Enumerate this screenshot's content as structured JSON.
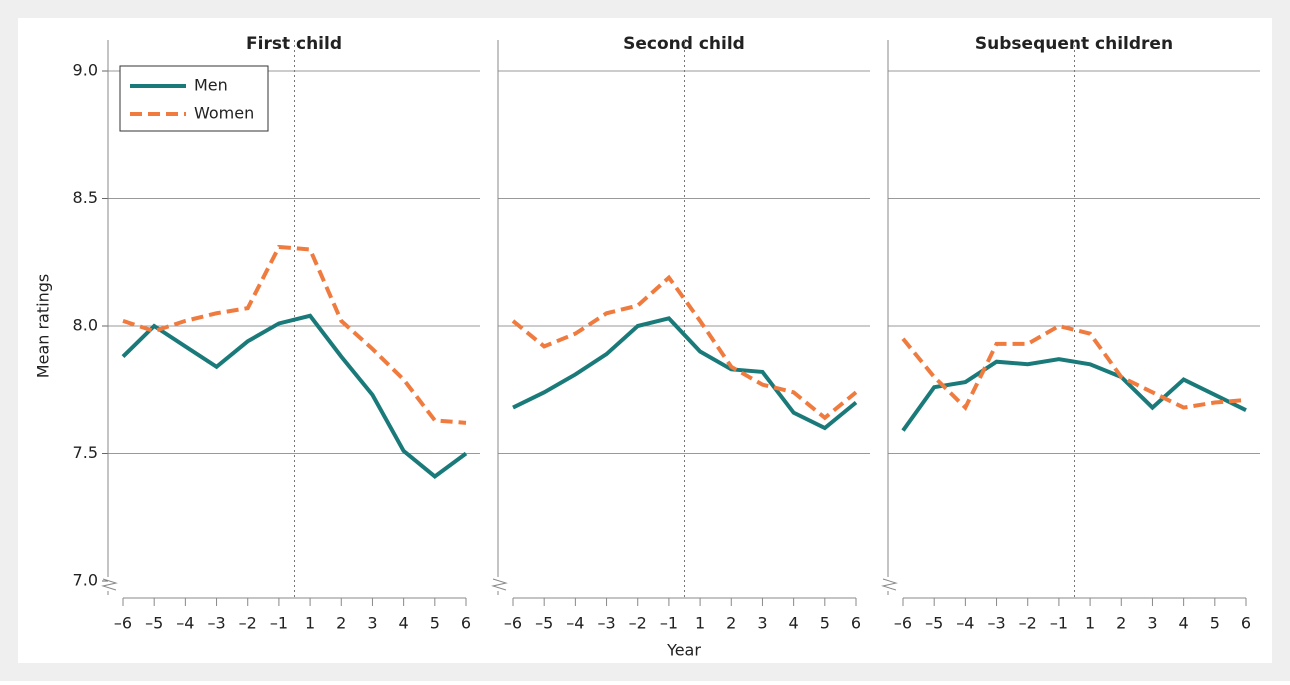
{
  "chart_data": [
    {
      "type": "line",
      "title": "First child",
      "y_label": "Mean ratings",
      "legend": "upper left",
      "grid": true,
      "ylim": [
        7,
        9
      ],
      "yticks": [
        {
          "value": 7,
          "label": "7.0"
        },
        7.5,
        {
          "value": 8,
          "label": "8.0"
        },
        8.5,
        {
          "value": 9,
          "label": "9.0"
        }
      ],
      "categories": [
        "–6",
        "–5",
        "–4",
        "–3",
        "–2",
        "–1",
        "1",
        "2",
        "3",
        "4",
        "5",
        "6"
      ],
      "series": [
        {
          "name": "Men",
          "color": "#1a7a7a",
          "values": [
            7.88,
            8.0,
            7.92,
            7.84,
            7.94,
            8.01,
            8.04,
            7.88,
            7.73,
            7.51,
            7.41,
            7.5
          ]
        },
        {
          "name": "Women",
          "color": "#f07b3f",
          "values": [
            8.02,
            7.98,
            8.02,
            8.05,
            8.07,
            8.31,
            8.3,
            8.02,
            7.91,
            7.79,
            7.63,
            7.62
          ]
        }
      ]
    },
    {
      "type": "line",
      "title": "Second child",
      "x_label": "Year",
      "categories": [
        "–6",
        "–5",
        "–4",
        "–3",
        "–2",
        "–1",
        "1",
        "2",
        "3",
        "4",
        "5",
        "6"
      ],
      "series": [
        {
          "name": "Men",
          "color": "#1a7a7a",
          "values": [
            7.68,
            7.74,
            7.81,
            7.89,
            8.0,
            8.03,
            7.9,
            7.83,
            7.82,
            7.66,
            7.6,
            7.7
          ]
        },
        {
          "name": "Women",
          "color": "#f07b3f",
          "values": [
            8.02,
            7.92,
            7.97,
            8.05,
            8.08,
            8.19,
            8.02,
            7.84,
            7.77,
            7.74,
            7.64,
            7.74
          ]
        }
      ]
    },
    {
      "type": "line",
      "title": "Subsequent children",
      "categories": [
        "–6",
        "–5",
        "–4",
        "–3",
        "–2",
        "–1",
        "1",
        "2",
        "3",
        "4",
        "5",
        "6"
      ],
      "series": [
        {
          "name": "Men",
          "color": "#1a7a7a",
          "values": [
            7.59,
            7.76,
            7.78,
            7.86,
            7.85,
            7.87,
            7.85,
            7.8,
            7.68,
            7.79,
            7.73,
            7.67
          ]
        },
        {
          "name": "Women",
          "color": "#f07b3f",
          "values": [
            7.95,
            7.8,
            7.68,
            7.93,
            7.93,
            8.0,
            7.97,
            7.8,
            7.74,
            7.68,
            7.7,
            7.71
          ]
        }
      ]
    }
  ]
}
